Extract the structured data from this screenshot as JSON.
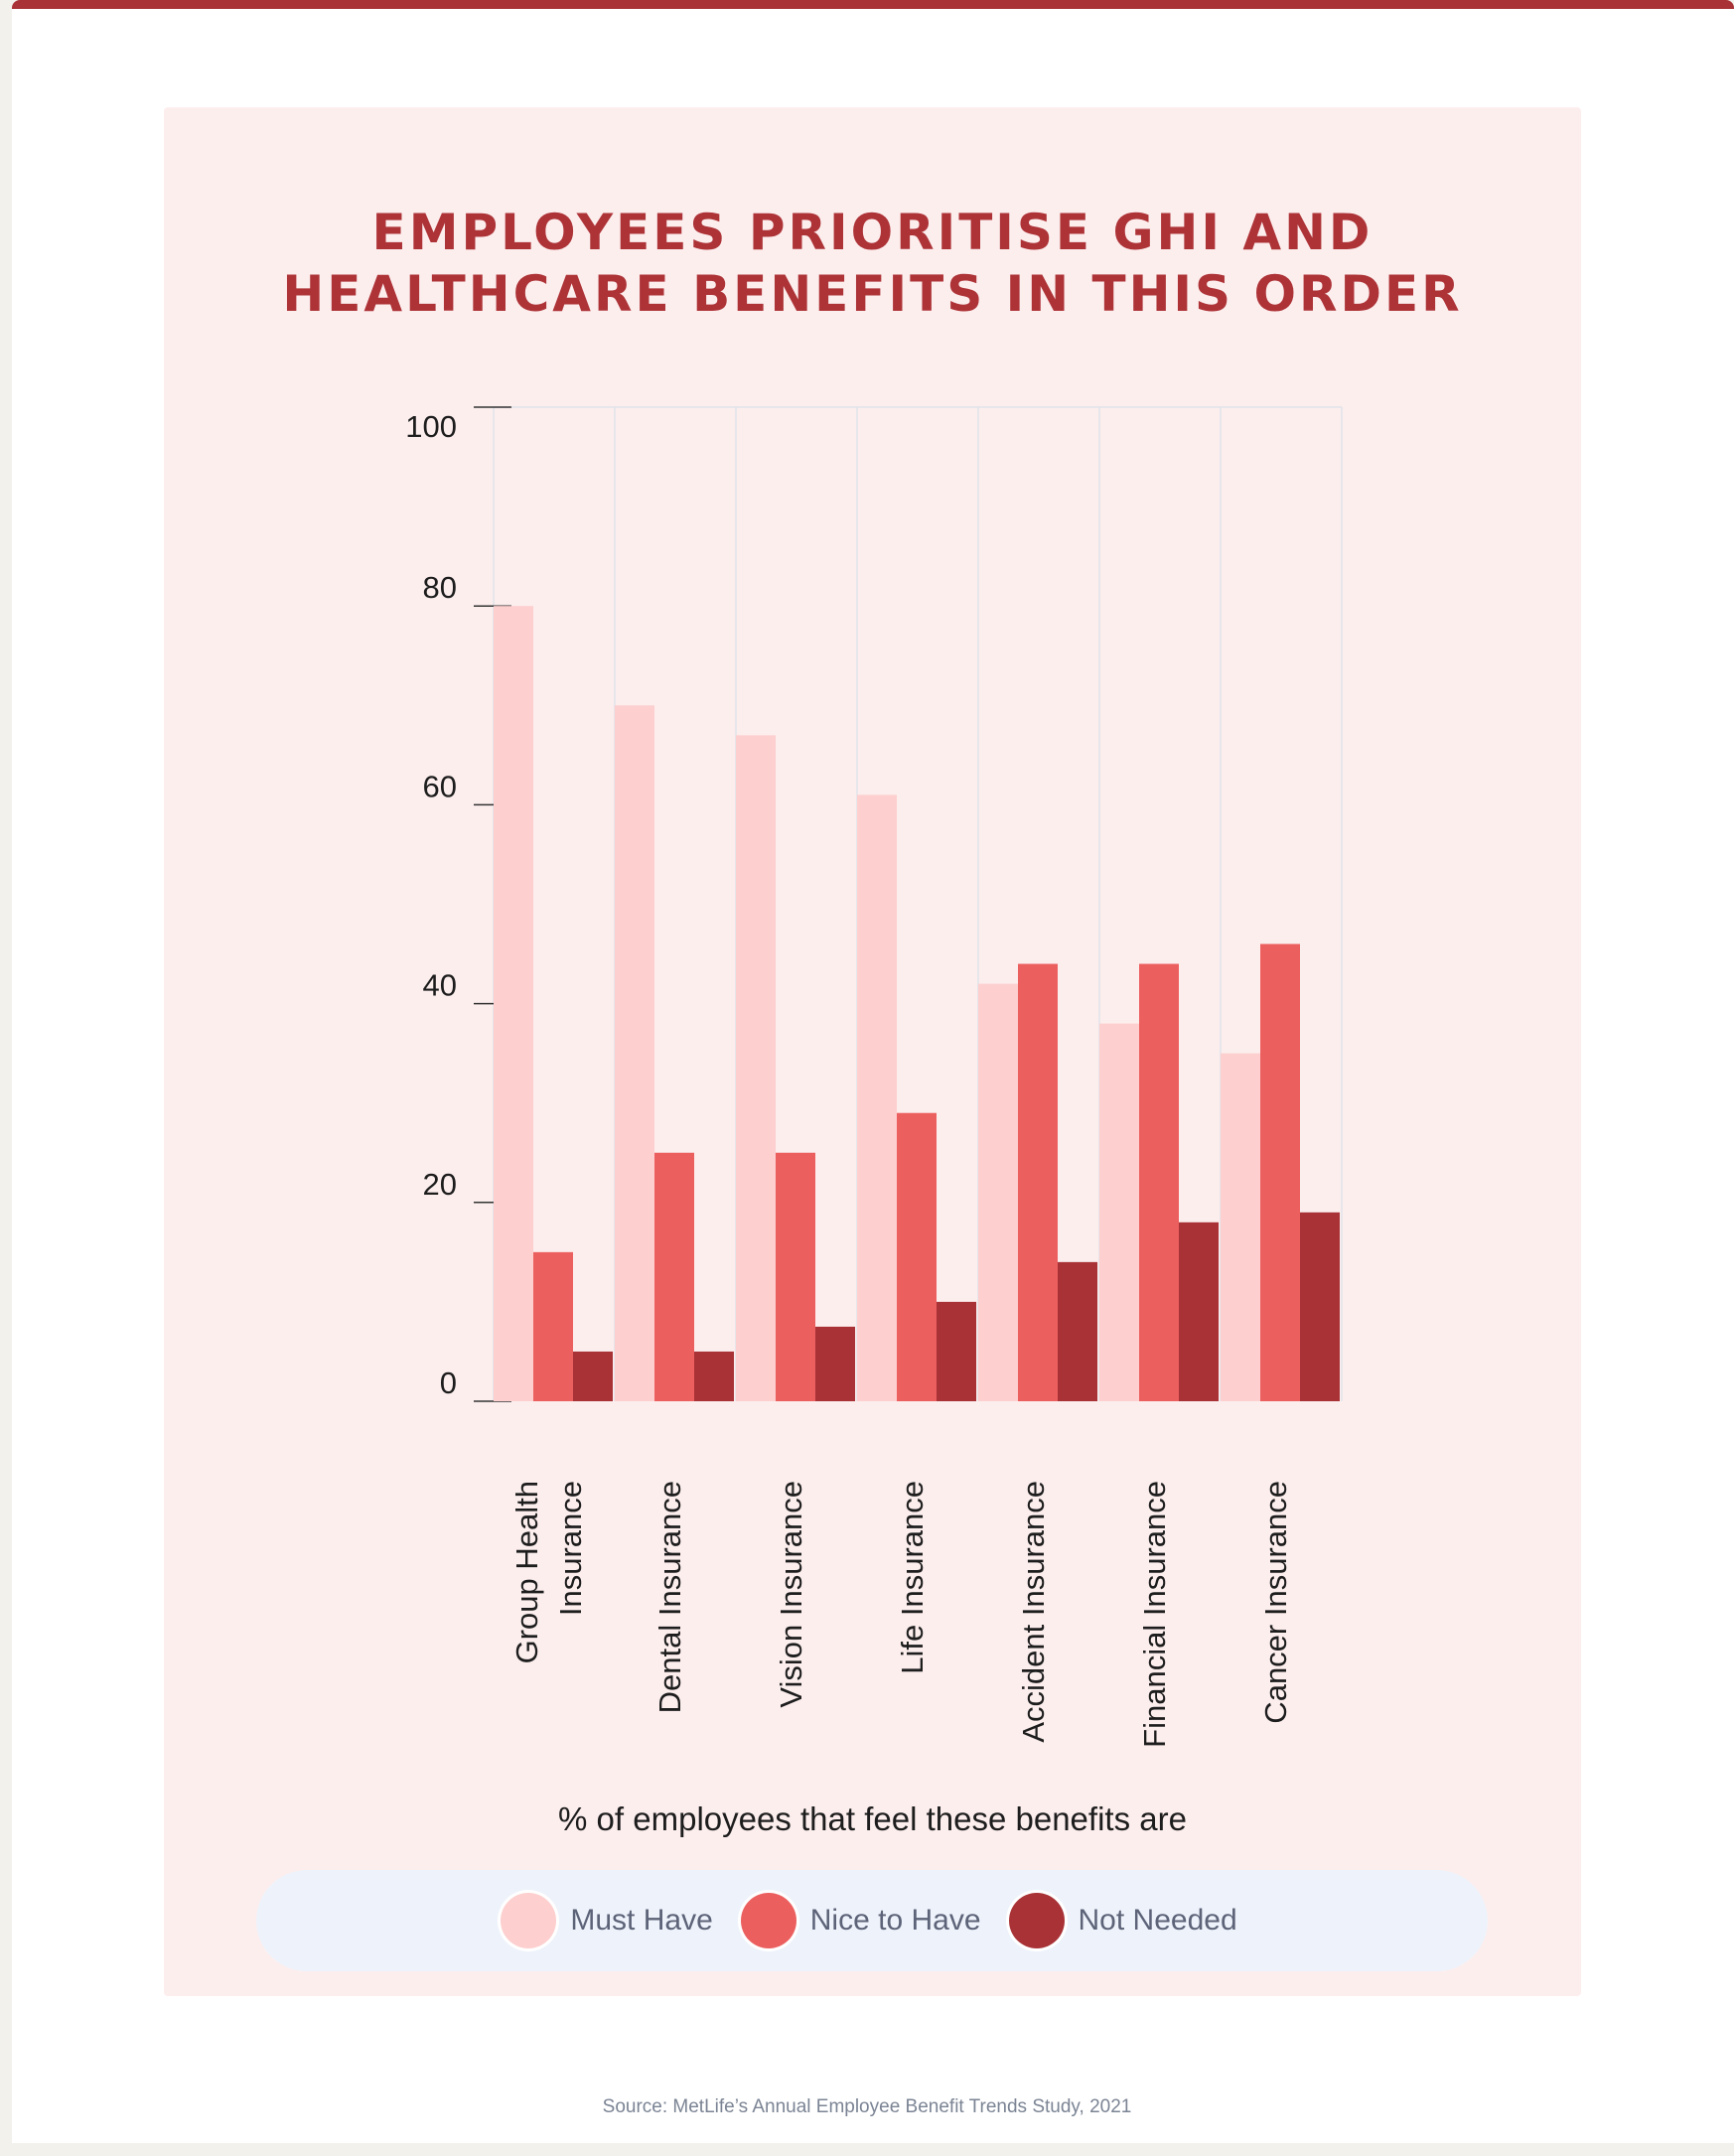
{
  "title_lines": [
    "EMPLOYEES PRIORITISE GHI AND",
    "HEALTHCARE BENEFITS IN THIS ORDER"
  ],
  "subtitle": "% of employees that feel these benefits are",
  "source": "Source: MetLife’s Annual Employee Benefit Trends Study, 2021",
  "colors": {
    "accent": "#ad3337",
    "panel": "#fdeeee",
    "legend_bg": "#eef3fb"
  },
  "chart_data": {
    "type": "bar",
    "title": "EMPLOYEES PRIORITISE GHI AND HEALTHCARE BENEFITS IN THIS ORDER",
    "xlabel": "% of employees that feel these benefits are",
    "ylabel": "",
    "ylim": [
      0,
      100
    ],
    "yticks": [
      0,
      20,
      40,
      60,
      80,
      100
    ],
    "grid": "vertical",
    "legend_position": "bottom",
    "categories": [
      "Group Health Insurance",
      "Dental Insurance",
      "Vision Insurance",
      "Life Insurance",
      "Accident Insurance",
      "Financial Insurance",
      "Cancer Insurance"
    ],
    "category_label_lines": [
      [
        "Group Health",
        "Insurance"
      ],
      [
        "Dental Insurance"
      ],
      [
        "Vision Insurance"
      ],
      [
        "Life Insurance"
      ],
      [
        "Accident Insurance"
      ],
      [
        "Financial Insurance"
      ],
      [
        "Cancer Insurance"
      ]
    ],
    "series": [
      {
        "name": "Must Have",
        "color": "#fdcfcf",
        "values": [
          80,
          70,
          67,
          61,
          42,
          38,
          35
        ]
      },
      {
        "name": "Nice to Have",
        "color": "#ec5f5f",
        "values": [
          15,
          25,
          25,
          29,
          44,
          44,
          46
        ]
      },
      {
        "name": "Not Needed",
        "color": "#a83236",
        "values": [
          5,
          5,
          7.5,
          10,
          14,
          18,
          19
        ]
      }
    ]
  }
}
